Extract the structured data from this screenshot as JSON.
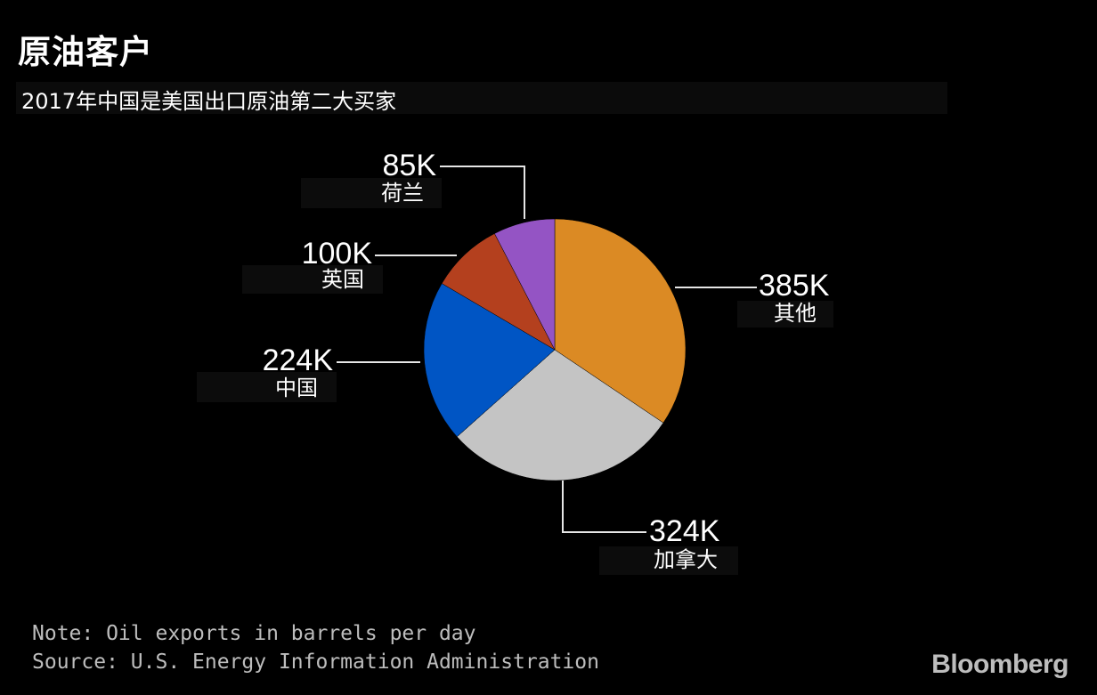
{
  "title": "原油客户",
  "subtitle": "2017年中国是美国出口原油第二大买家",
  "chart_data": {
    "type": "pie",
    "categories": [
      "其他",
      "加拿大",
      "中国",
      "英国",
      "荷兰"
    ],
    "values": [
      385,
      324,
      224,
      100,
      85
    ],
    "value_labels": [
      "385K",
      "324K",
      "224K",
      "100K",
      "85K"
    ],
    "colors": [
      "#db8a24",
      "#c4c4c4",
      "#0055c4",
      "#b4401e",
      "#9454c4"
    ],
    "start_angle_deg": 0,
    "direction": "clockwise"
  },
  "note": "Note: Oil exports in barrels per day",
  "source": "Source: U.S. Energy Information Administration",
  "brand": "Bloomberg"
}
